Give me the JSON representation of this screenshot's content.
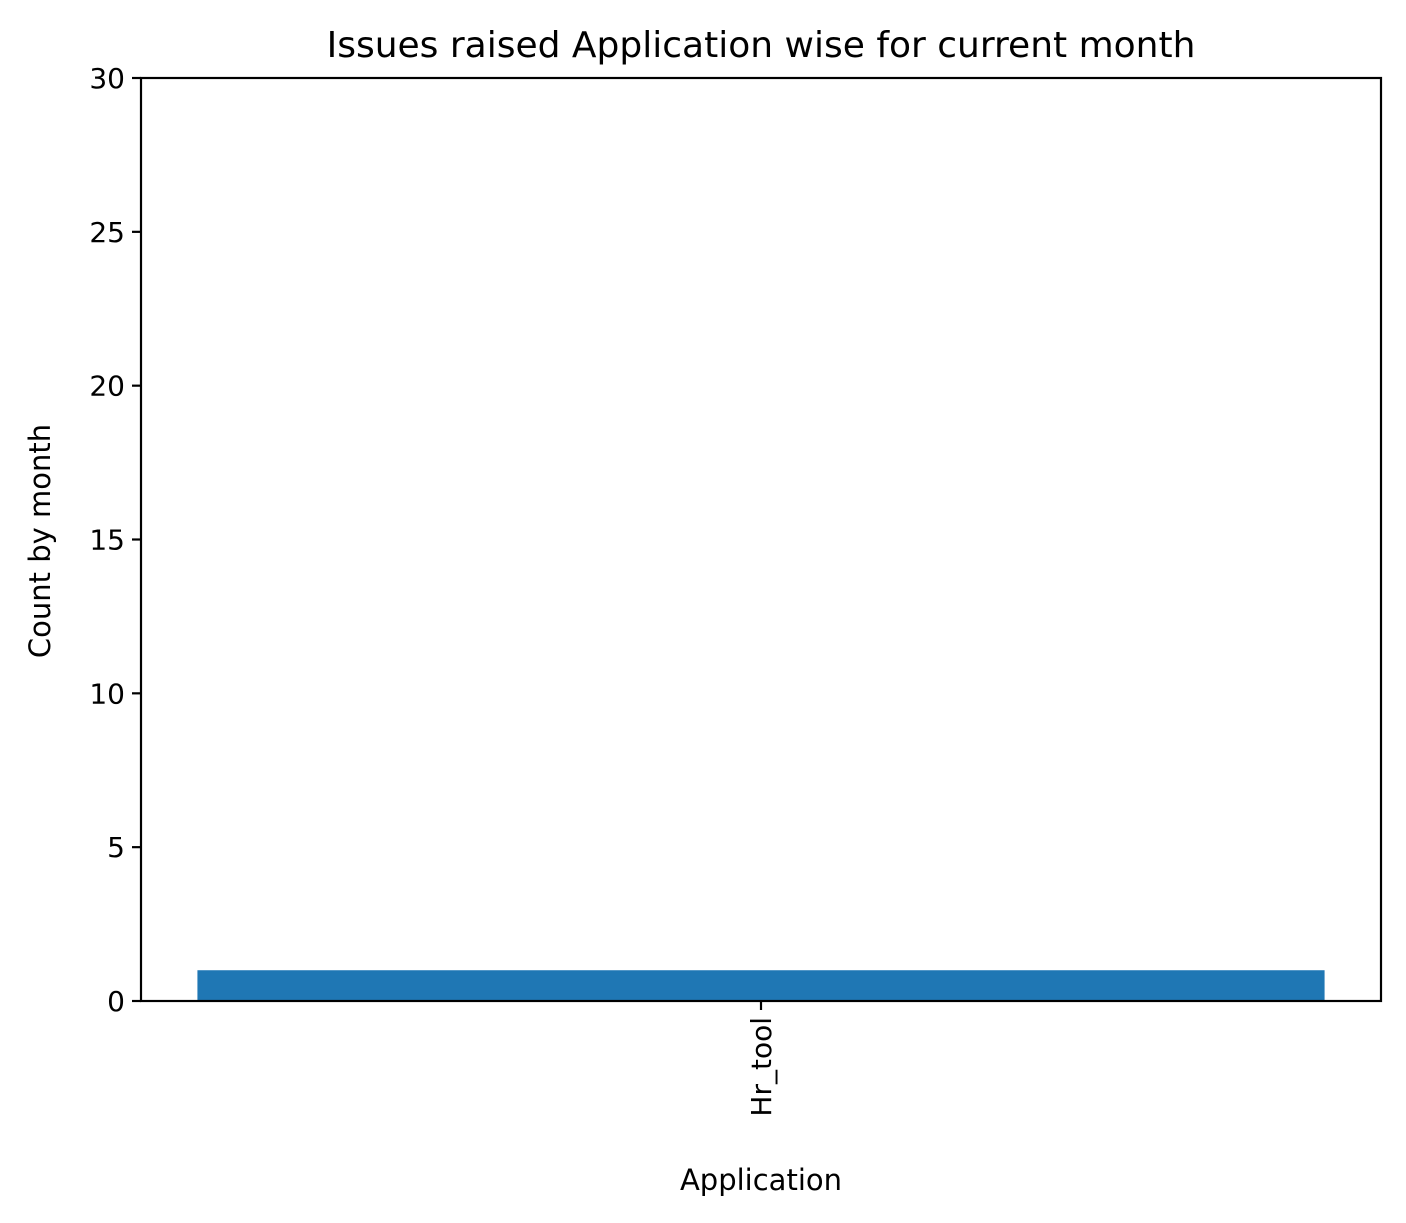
{
  "chart_data": {
    "type": "bar",
    "title": "Issues raised Application wise for current month",
    "xlabel": "Application",
    "ylabel": "Count by month",
    "categories": [
      "Hr_tool"
    ],
    "values": [
      1
    ],
    "ylim": [
      0,
      30
    ],
    "yticks": [
      0,
      5,
      10,
      15,
      20,
      25,
      30
    ],
    "grid": false,
    "bar_color": "#1f77b4",
    "x_tick_rotation": "vertical"
  }
}
